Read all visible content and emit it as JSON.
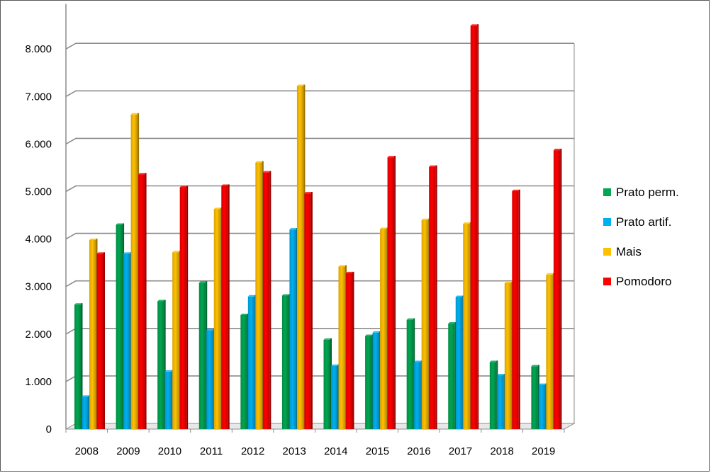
{
  "chart_data": {
    "type": "bar",
    "title": "",
    "xlabel": "",
    "ylabel": "",
    "categories": [
      "2008",
      "2009",
      "2010",
      "2011",
      "2012",
      "2013",
      "2014",
      "2015",
      "2016",
      "2017",
      "2018",
      "2019"
    ],
    "series": [
      {
        "name": "Prato perm.",
        "color": "#00A651",
        "values": [
          2620,
          4300,
          2690,
          3080,
          2400,
          2810,
          1880,
          1960,
          2300,
          2220,
          1410,
          1320
        ]
      },
      {
        "name": "Prato artif.",
        "color": "#00B0F0",
        "values": [
          680,
          3690,
          1210,
          2080,
          2790,
          4200,
          1330,
          2030,
          1410,
          2780,
          1130,
          930
        ]
      },
      {
        "name": "Mais",
        "color": "#FFC000",
        "values": [
          3980,
          6620,
          3720,
          4630,
          5610,
          7220,
          3420,
          4210,
          4400,
          4320,
          3070,
          3250
        ]
      },
      {
        "name": "Pomodoro",
        "color": "#FF0000",
        "values": [
          3690,
          5360,
          5090,
          5120,
          5400,
          4960,
          3280,
          5720,
          5520,
          8490,
          5010,
          5870
        ]
      }
    ],
    "yticks": [
      "0",
      "1.000",
      "2.000",
      "3.000",
      "4.000",
      "5.000",
      "6.000",
      "7.000",
      "8.000"
    ],
    "ylim": [
      0,
      8500
    ],
    "grid": true,
    "legend_position": "right"
  }
}
